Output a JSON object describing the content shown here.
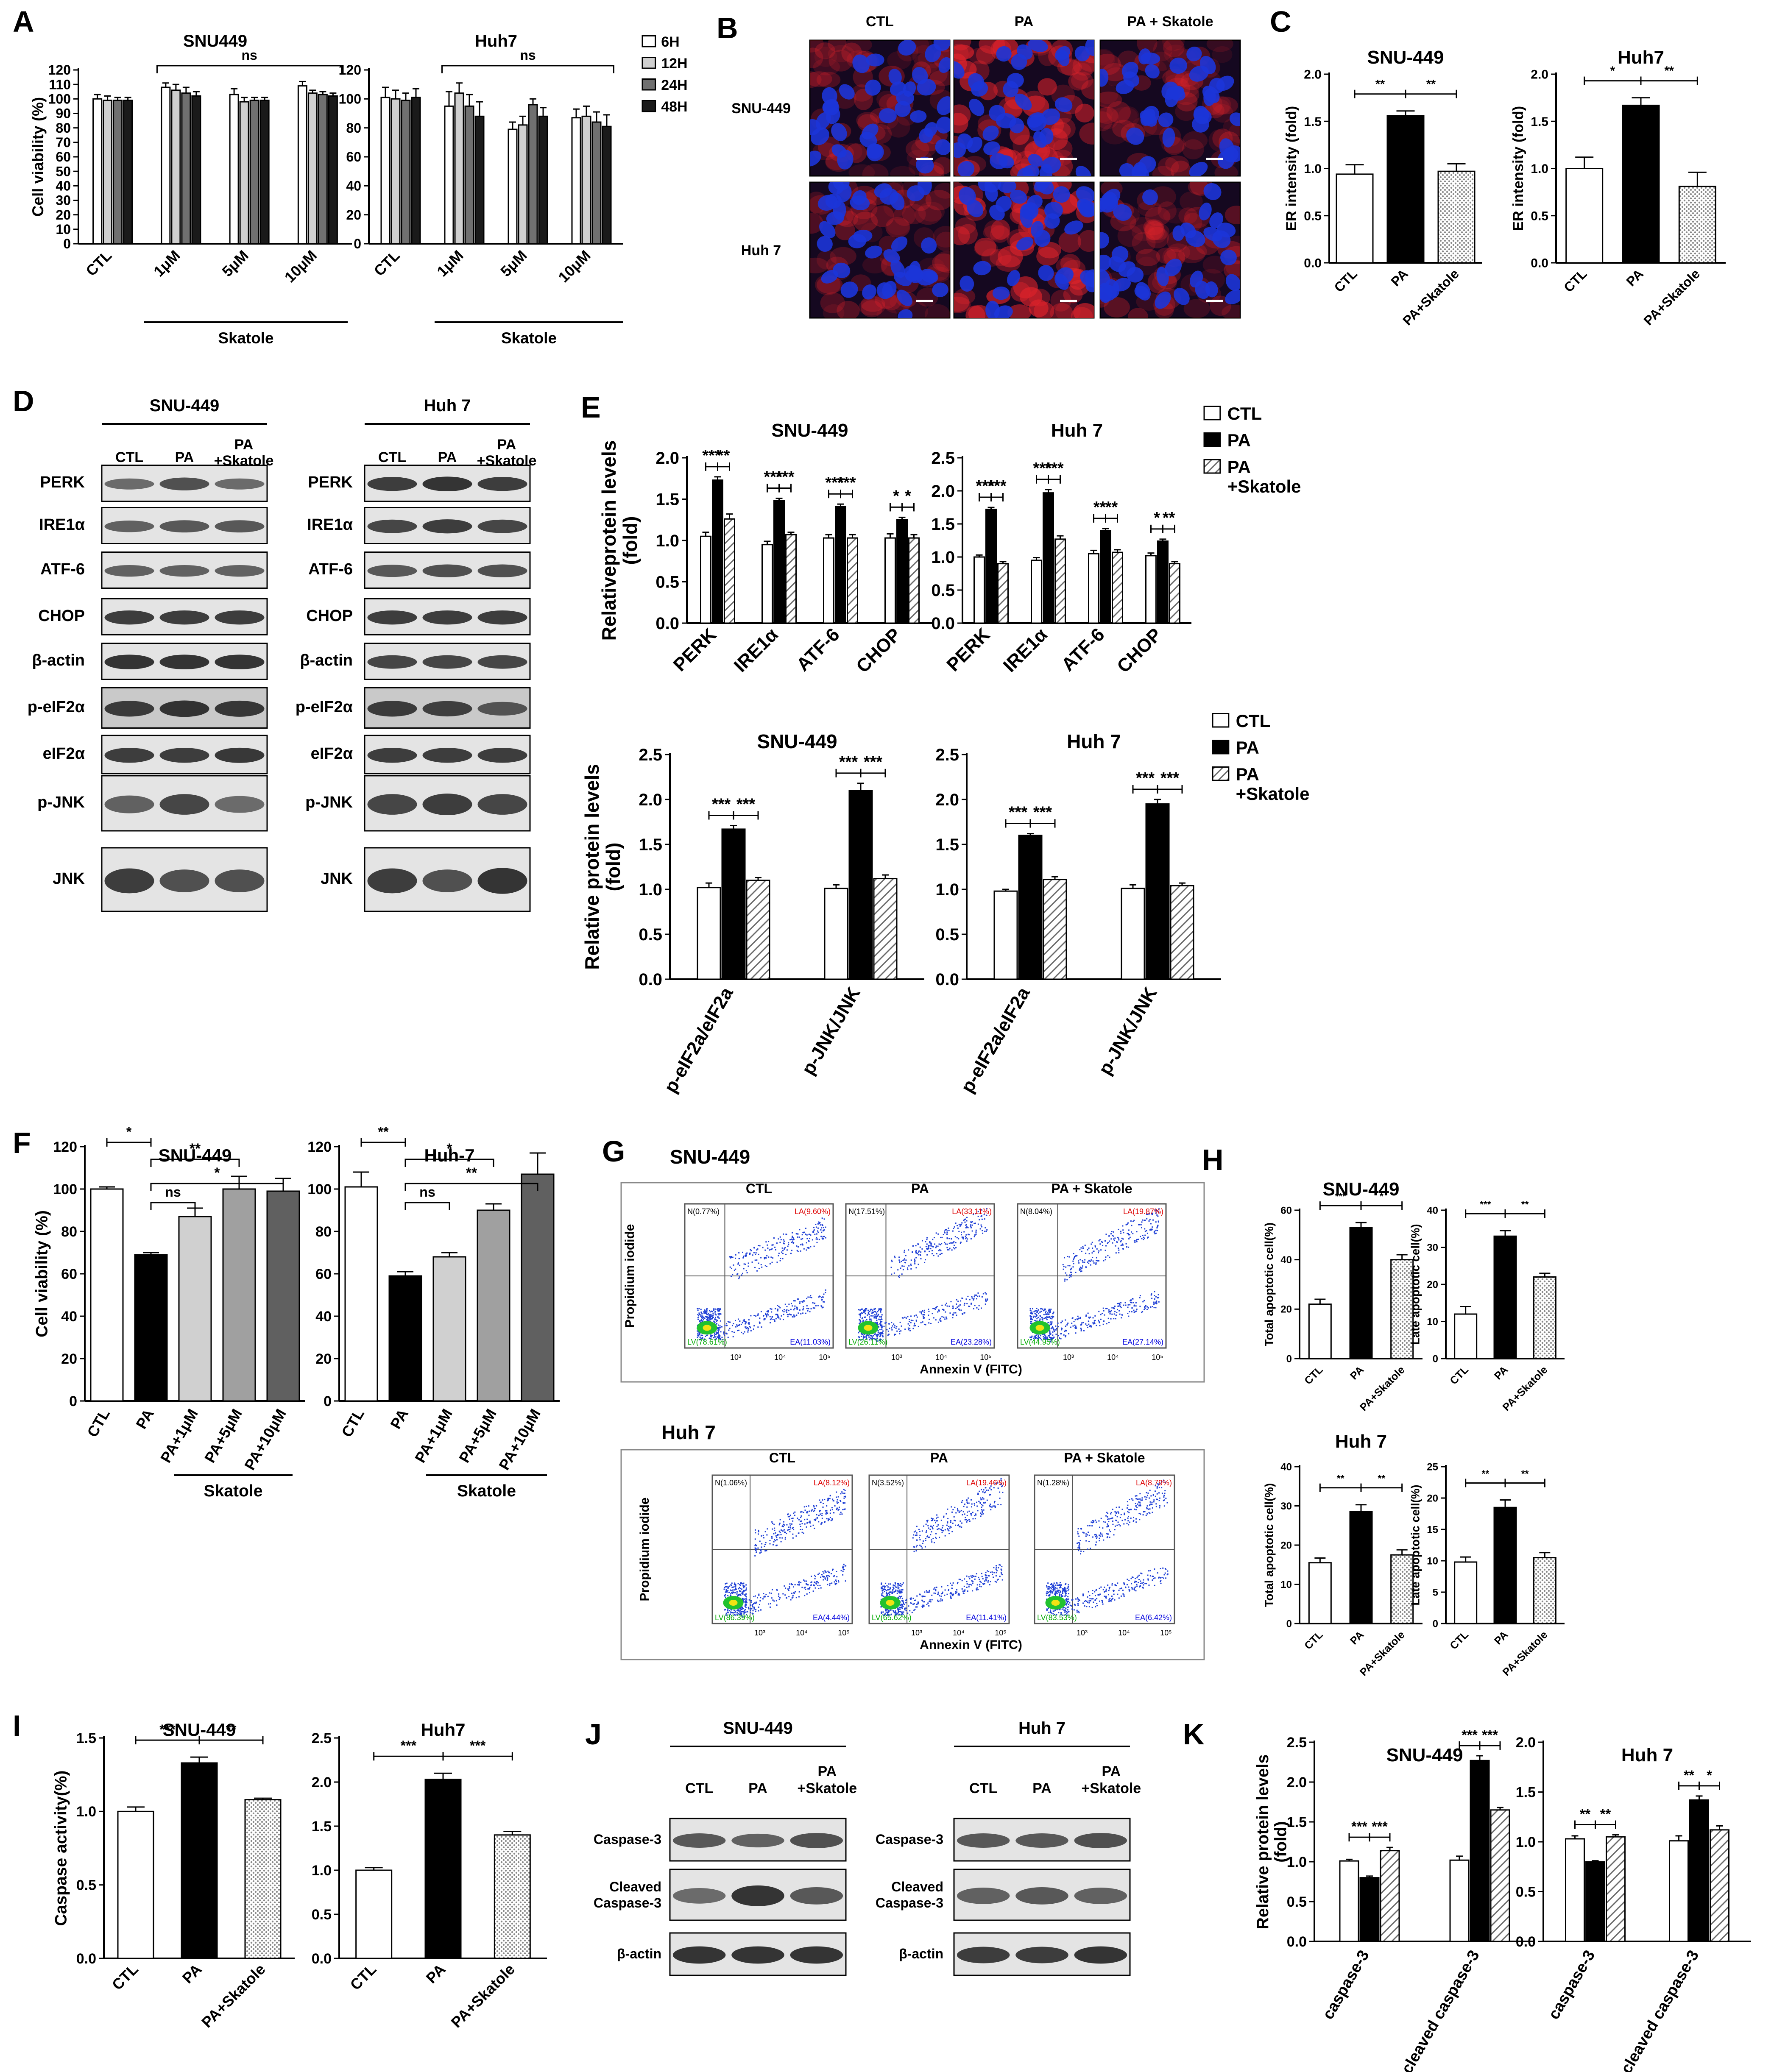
{
  "panel_letters": [
    "A",
    "B",
    "C",
    "D",
    "E",
    "F",
    "G",
    "H",
    "I",
    "J",
    "K"
  ],
  "skatole_label": "Skatole",
  "chart_data": [
    {
      "id": "A-SNU449",
      "type": "bar",
      "title": "SNU449",
      "ylabel": "Cell viability (%)",
      "ylim": [
        0,
        120
      ],
      "yticks": [
        0,
        10,
        20,
        30,
        40,
        50,
        60,
        70,
        80,
        90,
        100,
        110,
        120
      ],
      "categories": [
        "CTL",
        "1μM",
        "5μM",
        "10μM"
      ],
      "series": [
        {
          "name": "6H",
          "values": [
            100,
            108,
            103,
            109
          ],
          "errors": [
            3,
            3,
            4,
            3
          ]
        },
        {
          "name": "12H",
          "values": [
            99,
            106,
            98,
            104
          ],
          "errors": [
            3,
            4,
            3,
            2
          ]
        },
        {
          "name": "24H",
          "values": [
            99,
            104,
            99,
            103
          ],
          "errors": [
            2,
            4,
            2,
            2
          ]
        },
        {
          "name": "48H",
          "values": [
            99,
            102,
            99,
            102
          ],
          "errors": [
            2,
            3,
            2,
            2
          ]
        }
      ],
      "sig": [
        {
          "from": 1,
          "to": 3,
          "label": "ns"
        }
      ],
      "group_label": "Skatole"
    },
    {
      "id": "A-Huh7",
      "type": "bar",
      "title": "Huh7",
      "ylim": [
        0,
        120
      ],
      "yticks": [
        0,
        20,
        40,
        60,
        80,
        100,
        120
      ],
      "categories": [
        "CTL",
        "1μM",
        "5μM",
        "10μM"
      ],
      "series": [
        {
          "name": "6H",
          "values": [
            101,
            95,
            79,
            87
          ],
          "errors": [
            7,
            10,
            5,
            6
          ]
        },
        {
          "name": "12H",
          "values": [
            100,
            104,
            82,
            88
          ],
          "errors": [
            6,
            7,
            6,
            7
          ]
        },
        {
          "name": "24H",
          "values": [
            99,
            95,
            96,
            84
          ],
          "errors": [
            5,
            8,
            4,
            7
          ]
        },
        {
          "name": "48H",
          "values": [
            101,
            88,
            88,
            81
          ],
          "errors": [
            6,
            10,
            6,
            8
          ]
        }
      ],
      "sig": [
        {
          "from": 1,
          "to": 3,
          "label": "ns"
        }
      ],
      "group_label": "Skatole"
    },
    {
      "id": "C-SNU449",
      "type": "bar",
      "title": "SNU-449",
      "ylabel": "ER intensity (fold)",
      "ylim": [
        0,
        2.0
      ],
      "yticks": [
        "0.0",
        "0.5",
        "1.0",
        "1.5",
        "2.0"
      ],
      "categories": [
        "CTL",
        "PA",
        "PA+Skatole"
      ],
      "values": [
        0.94,
        1.56,
        0.97
      ],
      "errors": [
        0.1,
        0.05,
        0.08
      ],
      "sig": [
        {
          "from": 0,
          "to": 1,
          "label": "**"
        },
        {
          "from": 1,
          "to": 2,
          "label": "**"
        }
      ]
    },
    {
      "id": "C-Huh7",
      "type": "bar",
      "title": "Huh7",
      "ylabel": "ER intensity (fold)",
      "ylim": [
        0,
        2.0
      ],
      "yticks": [
        "0.0",
        "0.5",
        "1.0",
        "1.5",
        "2.0"
      ],
      "categories": [
        "CTL",
        "PA",
        "PA+Skatole"
      ],
      "values": [
        1.0,
        1.67,
        0.81
      ],
      "errors": [
        0.12,
        0.08,
        0.15
      ],
      "sig": [
        {
          "from": 0,
          "to": 1,
          "label": "*"
        },
        {
          "from": 1,
          "to": 2,
          "label": "**"
        }
      ]
    },
    {
      "id": "E1-SNU449",
      "type": "bar",
      "title": "SNU-449",
      "ylabel": "Relativeprotein levels (fold)",
      "ylim": [
        0,
        2.0
      ],
      "yticks": [
        "0.0",
        "0.5",
        "1.0",
        "1.5",
        "2.0"
      ],
      "categories": [
        "PERK",
        "IRE1α",
        "ATF-6",
        "CHOP"
      ],
      "series": [
        {
          "name": "CTL",
          "values": [
            1.05,
            0.95,
            1.03,
            1.03
          ],
          "errors": [
            0.05,
            0.04,
            0.04,
            0.05
          ]
        },
        {
          "name": "PA",
          "values": [
            1.73,
            1.48,
            1.41,
            1.25
          ],
          "errors": [
            0.04,
            0.03,
            0.03,
            0.03
          ]
        },
        {
          "name": "PA\n+Skatole",
          "values": [
            1.26,
            1.07,
            1.03,
            1.03
          ],
          "errors": [
            0.06,
            0.03,
            0.04,
            0.04
          ]
        }
      ],
      "sig_labels": [
        [
          "***",
          "**"
        ],
        [
          "***",
          "***"
        ],
        [
          "***",
          "***"
        ],
        [
          "*",
          "*"
        ]
      ]
    },
    {
      "id": "E1-Huh7",
      "type": "bar",
      "title": "Huh 7",
      "ylim": [
        0,
        2.5
      ],
      "yticks": [
        "0.0",
        "0.5",
        "1.0",
        "1.5",
        "2.0",
        "2.5"
      ],
      "categories": [
        "PERK",
        "IRE1α",
        "ATF-6",
        "CHOP"
      ],
      "series": [
        {
          "name": "CTL",
          "values": [
            1.0,
            0.95,
            1.05,
            1.02
          ],
          "errors": [
            0.03,
            0.04,
            0.05,
            0.04
          ]
        },
        {
          "name": "PA",
          "values": [
            1.72,
            1.97,
            1.4,
            1.24
          ],
          "errors": [
            0.03,
            0.05,
            0.03,
            0.03
          ]
        },
        {
          "name": "PA\n+Skatole",
          "values": [
            0.9,
            1.27,
            1.07,
            0.9
          ],
          "errors": [
            0.03,
            0.05,
            0.04,
            0.03
          ]
        }
      ],
      "sig_labels": [
        [
          "***",
          "***"
        ],
        [
          "***",
          "***"
        ],
        [
          "**",
          "**"
        ],
        [
          "*",
          "**"
        ]
      ]
    },
    {
      "id": "E2-SNU449",
      "type": "bar",
      "title": "SNU-449",
      "ylabel": "Relative protein levels (fold)",
      "ylim": [
        0,
        2.5
      ],
      "yticks": [
        "0.0",
        "0.5",
        "1.0",
        "1.5",
        "2.0",
        "2.5"
      ],
      "categories": [
        "p-eIF2a/eIF2a",
        "p-JNK/JNK"
      ],
      "series": [
        {
          "name": "CTL",
          "values": [
            1.02,
            1.01
          ],
          "errors": [
            0.05,
            0.04
          ]
        },
        {
          "name": "PA",
          "values": [
            1.67,
            2.1
          ],
          "errors": [
            0.04,
            0.08
          ]
        },
        {
          "name": "PA\n+Skatole",
          "values": [
            1.1,
            1.12
          ],
          "errors": [
            0.03,
            0.04
          ]
        }
      ],
      "sig_labels": [
        [
          "***",
          "***"
        ],
        [
          "***",
          "***"
        ]
      ]
    },
    {
      "id": "E2-Huh7",
      "type": "bar",
      "title": "Huh 7",
      "ylim": [
        0,
        2.5
      ],
      "yticks": [
        "0.0",
        "0.5",
        "1.0",
        "1.5",
        "2.0",
        "2.5"
      ],
      "categories": [
        "p-eIF2a/eIF2a",
        "p-JNK/JNK"
      ],
      "series": [
        {
          "name": "CTL",
          "values": [
            0.98,
            1.01
          ],
          "errors": [
            0.02,
            0.04
          ]
        },
        {
          "name": "PA",
          "values": [
            1.6,
            1.95
          ],
          "errors": [
            0.02,
            0.05
          ]
        },
        {
          "name": "PA\n+Skatole",
          "values": [
            1.11,
            1.04
          ],
          "errors": [
            0.03,
            0.03
          ]
        }
      ],
      "sig_labels": [
        [
          "***",
          "***"
        ],
        [
          "***",
          "***"
        ]
      ]
    },
    {
      "id": "F-SNU449",
      "type": "bar",
      "title": "SNU-449",
      "ylabel": "Cell viability (%)",
      "ylim": [
        0,
        120
      ],
      "yticks": [
        0,
        20,
        40,
        60,
        80,
        100,
        120
      ],
      "categories": [
        "CTL",
        "PA",
        "PA+1μM",
        "PA+5μM",
        "PA+10μM"
      ],
      "values": [
        100,
        69,
        87,
        100,
        99
      ],
      "errors": [
        1,
        1,
        4,
        6,
        6
      ],
      "sig": [
        {
          "from": 0,
          "to": 1,
          "label": "*"
        },
        {
          "from": 1,
          "to": 4,
          "label": "*"
        },
        {
          "from": 1,
          "to": 3,
          "label": "**"
        },
        {
          "from": 1,
          "to": 2,
          "label": "ns"
        }
      ],
      "group_label": "Skatole"
    },
    {
      "id": "F-Huh7",
      "type": "bar",
      "title": "Huh-7",
      "ylim": [
        0,
        120
      ],
      "yticks": [
        0,
        20,
        40,
        60,
        80,
        100,
        120
      ],
      "categories": [
        "CTL",
        "PA",
        "PA+1μM",
        "PA+5μM",
        "PA+10μM"
      ],
      "values": [
        101,
        59,
        68,
        90,
        107
      ],
      "errors": [
        7,
        2,
        2,
        3,
        10
      ],
      "sig": [
        {
          "from": 0,
          "to": 1,
          "label": "**"
        },
        {
          "from": 1,
          "to": 4,
          "label": "**"
        },
        {
          "from": 1,
          "to": 3,
          "label": "*"
        },
        {
          "from": 1,
          "to": 2,
          "label": "ns"
        }
      ],
      "group_label": "Skatole"
    },
    {
      "id": "H-SNU449-total",
      "type": "bar",
      "title": "SNU-449",
      "ylabel": "Total apoptotic cell(%)",
      "ylim": [
        0,
        60
      ],
      "yticks": [
        0,
        20,
        40,
        60
      ],
      "categories": [
        "CTL",
        "PA",
        "PA+Skatole"
      ],
      "values": [
        22,
        53,
        40
      ],
      "errors": [
        2,
        2,
        2
      ],
      "sig": [
        {
          "from": 0,
          "to": 1,
          "label": "***"
        },
        {
          "from": 1,
          "to": 2,
          "label": "*"
        }
      ]
    },
    {
      "id": "H-SNU449-late",
      "type": "bar",
      "ylabel": "Late apoptotic cell(%)",
      "ylim": [
        0,
        40
      ],
      "yticks": [
        0,
        10,
        20,
        30,
        40
      ],
      "categories": [
        "CTL",
        "PA",
        "PA+Skatole"
      ],
      "values": [
        12,
        33,
        22
      ],
      "errors": [
        2,
        1.5,
        1
      ],
      "sig": [
        {
          "from": 0,
          "to": 1,
          "label": "***"
        },
        {
          "from": 1,
          "to": 2,
          "label": "**"
        }
      ]
    },
    {
      "id": "H-Huh7-total",
      "type": "bar",
      "title": "Huh 7",
      "ylabel": "Total apoptotic cell(%)",
      "ylim": [
        0,
        40
      ],
      "yticks": [
        0,
        10,
        20,
        30,
        40
      ],
      "categories": [
        "CTL",
        "PA",
        "PA+Skatole"
      ],
      "values": [
        15.5,
        28.5,
        17.5
      ],
      "errors": [
        1.2,
        1.8,
        1.3
      ],
      "sig": [
        {
          "from": 0,
          "to": 1,
          "label": "**"
        },
        {
          "from": 1,
          "to": 2,
          "label": "**"
        }
      ]
    },
    {
      "id": "H-Huh7-late",
      "type": "bar",
      "ylabel": "Late apoptotic cell(%)",
      "ylim": [
        0,
        25
      ],
      "yticks": [
        0,
        5,
        10,
        15,
        20,
        25
      ],
      "categories": [
        "CTL",
        "PA",
        "PA+Skatole"
      ],
      "values": [
        9.8,
        18.5,
        10.5
      ],
      "errors": [
        0.8,
        1.2,
        0.8
      ],
      "sig": [
        {
          "from": 0,
          "to": 1,
          "label": "**"
        },
        {
          "from": 1,
          "to": 2,
          "label": "**"
        }
      ]
    },
    {
      "id": "I-SNU449",
      "type": "bar",
      "title": "SNU-449",
      "ylabel": "Caspase activity(%)",
      "ylim": [
        0,
        1.5
      ],
      "yticks": [
        "0.0",
        "0.5",
        "1.0",
        "1.5"
      ],
      "categories": [
        "CTL",
        "PA",
        "PA+Skatole"
      ],
      "values": [
        1.0,
        1.33,
        1.08
      ],
      "errors": [
        0.03,
        0.04,
        0.01
      ],
      "sig": [
        {
          "from": 0,
          "to": 1,
          "label": "***"
        },
        {
          "from": 1,
          "to": 2,
          "label": "**"
        }
      ]
    },
    {
      "id": "I-Huh7",
      "type": "bar",
      "title": "Huh7",
      "ylim": [
        0,
        2.5
      ],
      "yticks": [
        "0.0",
        "0.5",
        "1.0",
        "1.5",
        "2.0",
        "2.5"
      ],
      "categories": [
        "CTL",
        "PA",
        "PA+Skatole"
      ],
      "values": [
        1.0,
        2.03,
        1.4
      ],
      "errors": [
        0.03,
        0.07,
        0.04
      ],
      "sig": [
        {
          "from": 0,
          "to": 1,
          "label": "***"
        },
        {
          "from": 1,
          "to": 2,
          "label": "***"
        }
      ]
    },
    {
      "id": "K-SNU449",
      "type": "bar",
      "title": "SNU-449",
      "ylabel": "Relative protein levels (fold)",
      "ylim": [
        0,
        2.5
      ],
      "yticks": [
        "0.0",
        "0.5",
        "1.0",
        "1.5",
        "2.0",
        "2.5"
      ],
      "categories": [
        "caspase-3",
        "cleaved caspase-3"
      ],
      "series": [
        {
          "name": "CTL",
          "values": [
            1.01,
            1.02
          ],
          "errors": [
            0.02,
            0.05
          ]
        },
        {
          "name": "PA",
          "values": [
            0.8,
            2.27
          ],
          "errors": [
            0.02,
            0.06
          ]
        },
        {
          "name": "PA+Skatole",
          "values": [
            1.14,
            1.65
          ],
          "errors": [
            0.04,
            0.03
          ]
        }
      ],
      "sig_labels": [
        [
          "***",
          "***"
        ],
        [
          "***",
          "***"
        ]
      ]
    },
    {
      "id": "K-Huh7",
      "type": "bar",
      "title": "Huh 7",
      "ylim": [
        0,
        2.0
      ],
      "yticks": [
        "0.0",
        "0.5",
        "1.0",
        "1.5",
        "2.0"
      ],
      "categories": [
        "caspase-3",
        "cleaved caspase-3"
      ],
      "series": [
        {
          "name": "CTL",
          "values": [
            1.03,
            1.01
          ],
          "errors": [
            0.03,
            0.05
          ]
        },
        {
          "name": "PA",
          "values": [
            0.8,
            1.42
          ],
          "errors": [
            0.01,
            0.04
          ]
        },
        {
          "name": "PA+Skatole",
          "values": [
            1.05,
            1.12
          ],
          "errors": [
            0.02,
            0.04
          ]
        }
      ],
      "sig_labels": [
        [
          "**",
          "**"
        ],
        [
          "**",
          "*"
        ]
      ]
    }
  ],
  "panelB": {
    "columns": [
      "CTL",
      "PA",
      "PA + Skatole"
    ],
    "rows": [
      "SNU-449",
      "Huh 7"
    ]
  },
  "panelD": {
    "left": {
      "title": "SNU-449",
      "lanes": [
        "CTL",
        "PA",
        "PA\n+Skatole"
      ]
    },
    "right": {
      "title": "Huh 7",
      "lanes": [
        "CTL",
        "PA",
        "PA\n+Skatole"
      ]
    },
    "bands": [
      "PERK",
      "IRE1α",
      "ATF-6",
      "CHOP",
      "β-actin",
      "p-eIF2α",
      "eIF2α",
      "p-JNK",
      "JNK"
    ]
  },
  "panelG": {
    "title1": "SNU-449",
    "title2": "Huh 7",
    "columns": [
      "CTL",
      "PA",
      "PA + Skatole"
    ],
    "xlabel": "Annexin V (FITC)",
    "ylabel": "Propidium iodide",
    "quadrants_snu": [
      [
        "N(0.77%)",
        "LA(9.60%)",
        "LV(78.61%)",
        "EA(11.03%)"
      ],
      [
        "N(17.51%)",
        "LA(33.11%)",
        "LV(26.11%)",
        "EA(23.28%)"
      ],
      [
        "N(8.04%)",
        "LA(19.87%)",
        "LV(44.95%)",
        "EA(27.14%)"
      ]
    ],
    "quadrants_huh": [
      [
        "N(1.06%)",
        "LA(8.12%)",
        "LV(86.39%)",
        "EA(4.44%)"
      ],
      [
        "N(3.52%)",
        "LA(19.46%)",
        "LV(65.62%)",
        "EA(11.41%)"
      ],
      [
        "N(1.28%)",
        "LA(8.79%)",
        "LV(83.53%)",
        "EA(6.42%)"
      ]
    ],
    "axis_ticks": [
      "0",
      "10³",
      "10⁴",
      "10⁵"
    ]
  },
  "panelJ": {
    "left": {
      "title": "SNU-449",
      "lanes": [
        "CTL",
        "PA",
        "PA\n+Skatole"
      ]
    },
    "right": {
      "title": "Huh 7",
      "lanes": [
        "CTL",
        "PA",
        "PA\n+Skatole"
      ]
    },
    "bands": [
      "Caspase-3",
      "Cleaved\nCaspase-3",
      "β-actin"
    ]
  },
  "colors": {
    "ctl": "#ffffff",
    "pa": "#000000",
    "h6": "#ffffff",
    "h12": "#d0d0d0",
    "h24": "#707070",
    "h48": "#1a1a1a",
    "pa1": "#d0d0d0",
    "pa5": "#a0a0a0",
    "pa10": "#606060",
    "hatch": "#777777",
    "nucleus": "#1c35d8",
    "er": "#e0232b"
  }
}
